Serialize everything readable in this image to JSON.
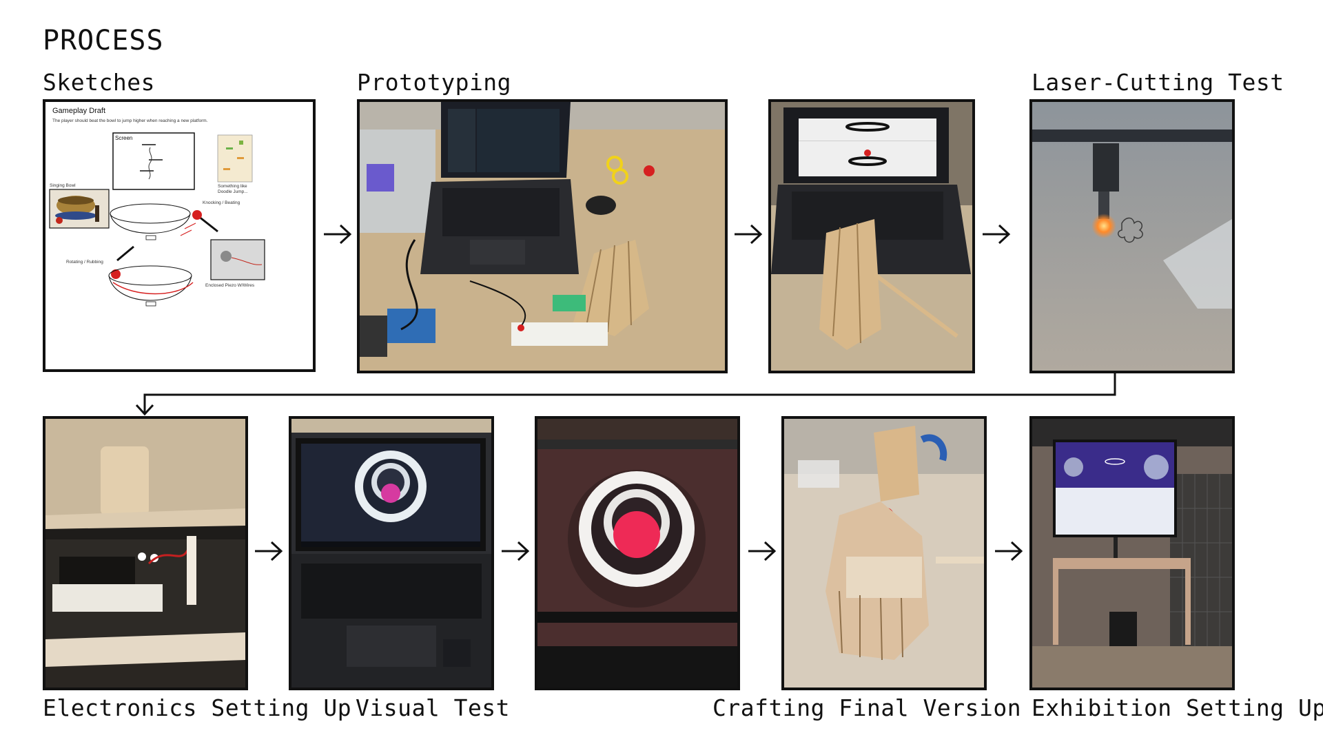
{
  "page": {
    "heading": "PROCESS"
  },
  "steps": {
    "sketches": {
      "label": "Sketches"
    },
    "prototyping": {
      "label": "Prototyping"
    },
    "laser": {
      "label": "Laser-Cutting Test"
    },
    "electronics": {
      "label": "Electronics Setting Up"
    },
    "visual": {
      "label": "Visual Test"
    },
    "crafting": {
      "label": "Crafting Final Version"
    },
    "exhibition": {
      "label": "Exhibition Setting Up!"
    }
  },
  "sketch": {
    "title": "Gameplay Draft",
    "subtitle": "The player should beat the bowl to jump higher when reaching a new platform.",
    "screen_label": "Screen",
    "singing_bowl_label": "Singing Bowl",
    "doodle_label_1": "Something like",
    "doodle_label_2": "Doodle Jump...",
    "knocking_label": "Knocking / Beating",
    "rotating_label": "Rotating / Rubbing",
    "piezo_label": "Enclosed Piezo W/Wires"
  },
  "colors": {
    "frame": "#111111",
    "accent_red": "#d62020",
    "arrow": "#111111"
  },
  "icons": {
    "arrow": "right-arrow-icon",
    "connector": "down-turn-arrow-icon"
  }
}
